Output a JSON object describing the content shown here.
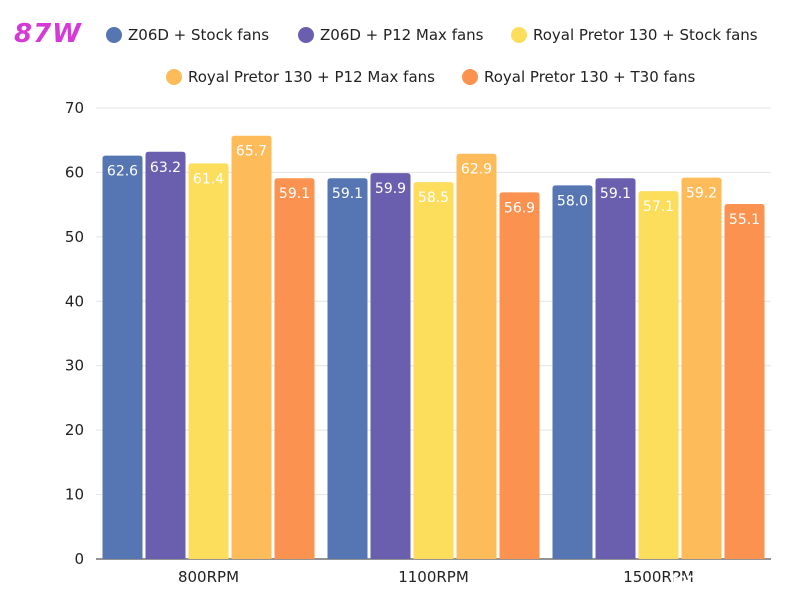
{
  "badge": "87W",
  "watermark": "forum.onliner.by",
  "chart_data": {
    "type": "bar",
    "categories": [
      "800RPM",
      "1100RPM",
      "1500RPM"
    ],
    "series": [
      {
        "name": "Z06D + Stock fans",
        "color": "#5576b3",
        "values": [
          62.6,
          59.1,
          58.0
        ]
      },
      {
        "name": "Z06D + P12 Max fans",
        "color": "#6a5fae",
        "values": [
          63.2,
          59.9,
          59.1
        ]
      },
      {
        "name": "Royal Pretor 130 + Stock fans",
        "color": "#fddd5c",
        "values": [
          61.4,
          58.5,
          57.1
        ]
      },
      {
        "name": "Royal Pretor 130 + P12 Max fans",
        "color": "#fdbb5a",
        "values": [
          65.7,
          62.9,
          59.2
        ]
      },
      {
        "name": "Royal Pretor 130 + T30 fans",
        "color": "#fc924f",
        "values": [
          59.1,
          56.9,
          55.1
        ]
      }
    ],
    "ylim": [
      0,
      70
    ],
    "yticks": [
      0,
      10,
      20,
      30,
      40,
      50,
      60,
      70
    ],
    "grid": true,
    "legend": "top"
  }
}
